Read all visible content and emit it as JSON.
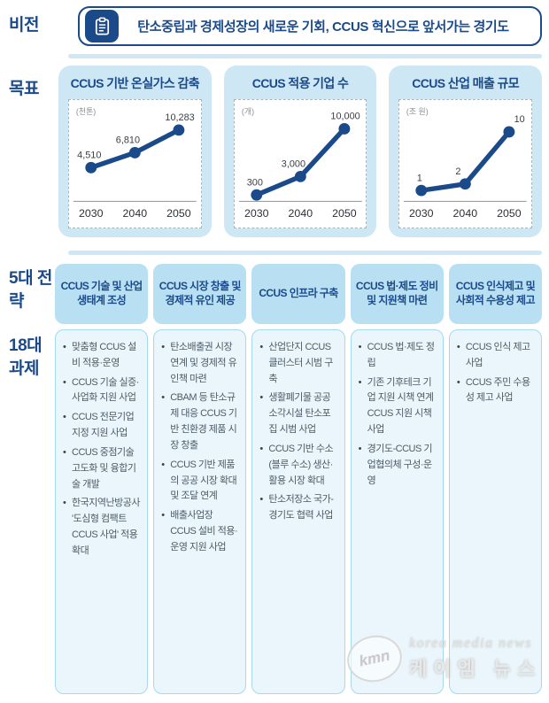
{
  "colors": {
    "navy": "#1b4a8b",
    "card_bg": "#cde7f5",
    "header_bg": "#b9e0f2",
    "body_bg": "#eaf6fc",
    "body_border": "#a5d9ef",
    "task_text": "#4e5a66"
  },
  "vision": {
    "label": "비전",
    "icon": "clipboard-icon",
    "text": "탄소중립과 경제성장의 새로운 기회, CCUS 혁신으로 앞서가는 경기도"
  },
  "goals": {
    "label": "목표"
  },
  "chart_data": [
    {
      "type": "line",
      "title": "CCUS 기반 온실가스 감축",
      "unit": "(천톤)",
      "categories": [
        "2030",
        "2040",
        "2050"
      ],
      "values": [
        4510,
        6810,
        10283
      ],
      "value_labels": [
        "4,510",
        "6,810",
        "10,283"
      ],
      "ylim": [
        0,
        11000
      ],
      "grid": false,
      "legend": "none",
      "line_color": "#1b4a8b"
    },
    {
      "type": "line",
      "title": "CCUS 적용 기업 수",
      "unit": "(개)",
      "categories": [
        "2030",
        "2040",
        "2050"
      ],
      "values": [
        300,
        3000,
        10000
      ],
      "value_labels": [
        "300",
        "3,000",
        "10,000"
      ],
      "ylim": [
        0,
        10500
      ],
      "grid": false,
      "legend": "none",
      "line_color": "#1b4a8b"
    },
    {
      "type": "line",
      "title": "CCUS 산업 매출 규모",
      "unit": "(조 원)",
      "categories": [
        "2030",
        "2040",
        "2050"
      ],
      "values": [
        1,
        2,
        10
      ],
      "value_labels": [
        "1",
        "2",
        "10"
      ],
      "ylim": [
        0,
        11
      ],
      "grid": false,
      "legend": "none",
      "line_color": "#1b4a8b"
    }
  ],
  "strategy": {
    "label_strategies": "5대 전략",
    "label_tasks": "18대 과제",
    "columns": [
      {
        "header": "CCUS 기술 및 산업 생태계 조성",
        "items": [
          "맞춤형 CCUS 설비 적용·운영",
          "CCUS 기술 실증·사업화 지원 사업",
          "CCUS 전문기업 지정 지원 사업",
          "CCUS 중점기술 고도화 및 융합기술 개발",
          "한국지역난방공사 '도심형 컴팩트 CCUS 사업' 적용 확대"
        ]
      },
      {
        "header": "CCUS 시장 창출 및 경제적 유인 제공",
        "items": [
          "탄소배출권 시장 연계 및 경제적 유인책 마련",
          "CBAM 등 탄소규제 대응 CCUS 기반 친환경 제품 시장 창출",
          "CCUS 기반 제품의 공공 시장 확대 및 조달 연계",
          "배출사업장 CCUS 설비 적용·운영 지원 사업"
        ]
      },
      {
        "header": "CCUS 인프라 구축",
        "items": [
          "산업단지 CCUS 클러스터 시범 구축",
          "생활폐기물 공공소각시설 탄소포집 시범 사업",
          "CCUS 기반 수소(블루 수소) 생산·활용 시장 확대",
          "탄소저장소 국가-경기도 협력 사업"
        ]
      },
      {
        "header": "CCUS 법·제도 정비 및 지원책 마련",
        "items": [
          "CCUS 법·제도 정립",
          "기존 기후테크 기업 지원 시책 연계 CCUS 지원 시책 사업",
          "경기도-CCUS 기업협의체 구성·운영"
        ]
      },
      {
        "header": "CCUS 인식제고 및 사회적 수용성 제고",
        "items": [
          "CCUS 인식 제고 사업",
          "CCUS 주민 수용성 제고 사업"
        ]
      }
    ]
  },
  "watermark": {
    "logo": "kmn",
    "line1": "korea media news",
    "line2": "케이엠 뉴스"
  }
}
